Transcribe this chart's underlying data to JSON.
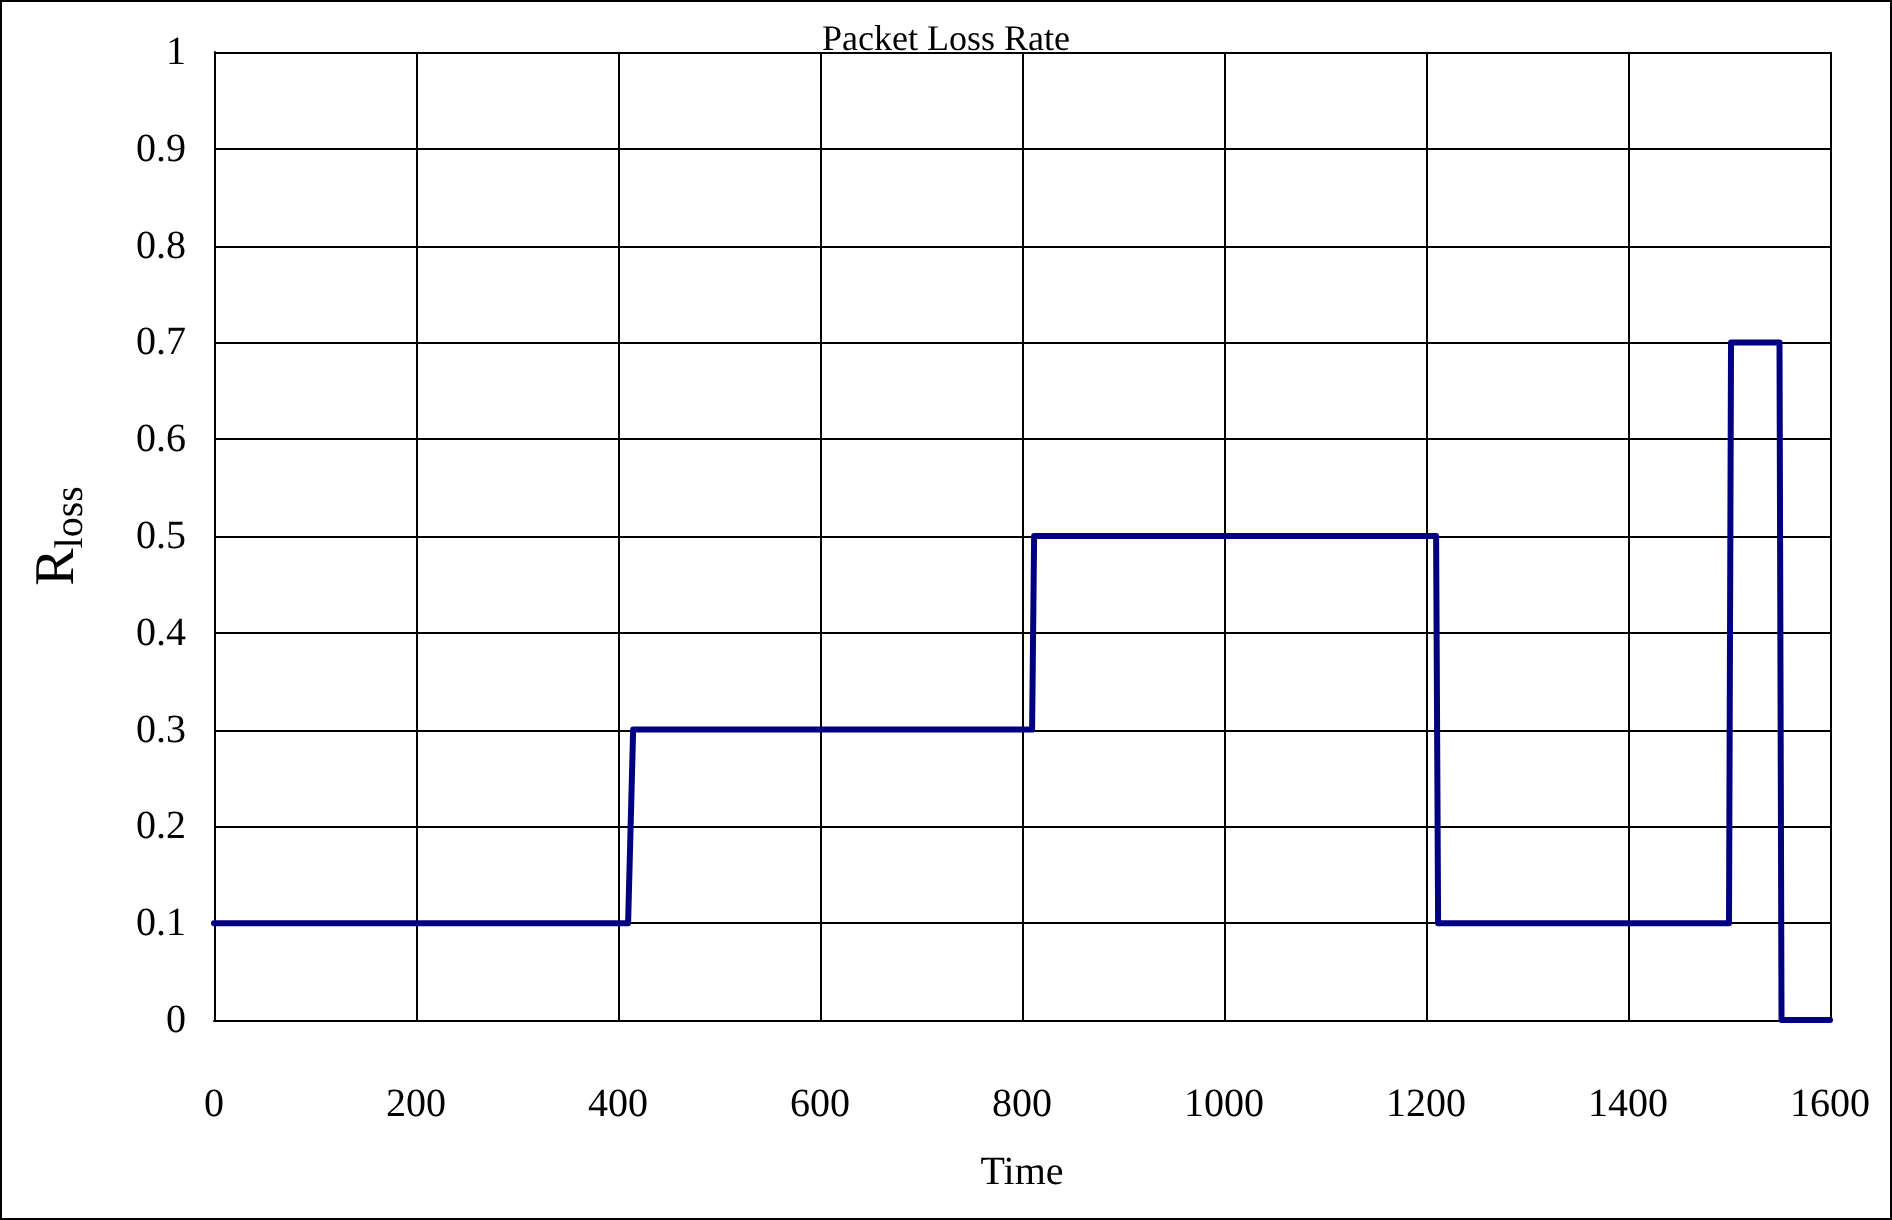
{
  "chart_data": {
    "type": "line",
    "title": "Packet Loss Rate",
    "xlabel": "Time",
    "ylabel": "R$_{loss}$",
    "x": [
      0,
      410,
      415,
      810,
      812,
      1210,
      1212,
      1500,
      1502,
      1550,
      1552,
      1600
    ],
    "series": [
      {
        "color": "#000080",
        "values": [
          0.1,
          0.1,
          0.3,
          0.3,
          0.5,
          0.5,
          0.1,
          0.1,
          0.7,
          0.7,
          0,
          0
        ]
      }
    ],
    "xlim": [
      0,
      1600
    ],
    "xticks": [
      0,
      200,
      400,
      600,
      800,
      1000,
      1200,
      1400,
      1600
    ],
    "ylim": [
      0,
      1
    ],
    "yticks": [
      0,
      0.1,
      0.2,
      0.3,
      0.4,
      0.5,
      0.6,
      0.7,
      0.8,
      0.9,
      1
    ],
    "grid": true,
    "marker": "none",
    "line_style": "solid"
  }
}
